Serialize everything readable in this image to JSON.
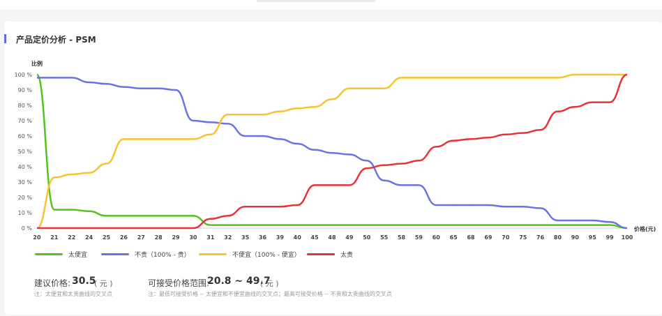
{
  "header": {
    "title": "产品定价分析 - PSM"
  },
  "chart_data": {
    "type": "line",
    "ylabel": "比例",
    "xlabel": "价格(元)",
    "categories": [
      "20",
      "21",
      "22",
      "24",
      "25",
      "26",
      "27",
      "28",
      "29",
      "30",
      "31",
      "32",
      "35",
      "36",
      "39",
      "40",
      "45",
      "48",
      "49",
      "50",
      "55",
      "58",
      "59",
      "60",
      "65",
      "68",
      "69",
      "70",
      "75",
      "76",
      "80",
      "90",
      "95",
      "99",
      "100"
    ],
    "yticks": [
      "0 %",
      "10 %",
      "20 %",
      "30 %",
      "40 %",
      "50 %",
      "60 %",
      "70 %",
      "80 %",
      "90 %",
      "100 %"
    ],
    "ylim": [
      0,
      100
    ],
    "series": [
      {
        "name": "太便宜",
        "color": "#52c41a",
        "values": [
          100,
          12,
          12,
          11,
          8,
          8,
          8,
          8,
          8,
          8,
          2,
          2,
          2,
          2,
          2,
          2,
          2,
          2,
          2,
          2,
          2,
          2,
          2,
          2,
          2,
          2,
          2,
          2,
          2,
          2,
          2,
          2,
          2,
          2,
          0
        ]
      },
      {
        "name": "不贵（100% - 贵）",
        "color": "#6b72e6",
        "values": [
          98,
          98,
          98,
          95,
          94,
          92,
          91,
          91,
          90,
          70,
          69,
          68,
          60,
          60,
          58,
          55,
          51,
          49,
          48,
          44,
          31,
          28,
          28,
          15,
          15,
          15,
          15,
          14,
          14,
          13,
          5,
          5,
          5,
          4,
          0
        ]
      },
      {
        "name": "不便宜（100% - 便宜）",
        "color": "#fac22e",
        "values": [
          0,
          33,
          35,
          36,
          42,
          58,
          58,
          58,
          58,
          58,
          61,
          74,
          74,
          74,
          76,
          78,
          79,
          84,
          91,
          91,
          91,
          98,
          98,
          98,
          98,
          98,
          98,
          98,
          98,
          98,
          98,
          100,
          100,
          100,
          100
        ]
      },
      {
        "name": "太贵",
        "color": "#e8323a",
        "values": [
          0,
          0,
          0,
          0,
          0,
          0,
          0,
          0,
          0,
          0,
          6,
          8,
          14,
          14,
          14,
          15,
          28,
          28,
          28,
          39,
          41,
          42,
          44,
          53,
          57,
          58,
          59,
          61,
          62,
          64,
          76,
          79,
          82,
          82,
          100
        ]
      }
    ],
    "grid": false,
    "legend_position": "bottom-left"
  },
  "summary": {
    "suggested_label": "建议价格:",
    "suggested_value": "30.5",
    "suggested_unit": "( 元 )",
    "suggested_note": "注：太便宜和太贵曲线的交叉点",
    "range_label": "可接受价格范围:",
    "range_value": "20.8 ~ 49.7",
    "range_unit": "( 元 )",
    "range_note": "注：最低可接受价格 -- 太便宜和不便宜曲线的交叉点；最高可接受价格 -- 不贵和太贵曲线的交叉点"
  }
}
